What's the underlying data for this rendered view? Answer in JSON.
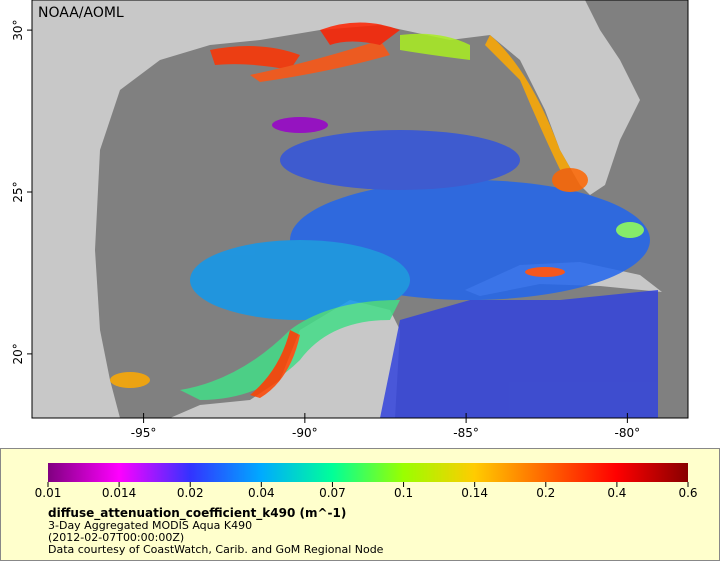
{
  "map": {
    "source": "NOAA/AOML",
    "lon_range": [
      -98.46,
      -78.12
    ],
    "lat_range": [
      30.93,
      18.02
    ],
    "lon_ticks": [
      {
        "value": -95,
        "label": "-95°"
      },
      {
        "value": -90,
        "label": "-90°"
      },
      {
        "value": -85,
        "label": "-85°"
      },
      {
        "value": -80,
        "label": "-80°"
      }
    ],
    "lat_ticks": [
      {
        "value": 30,
        "label": "30°"
      },
      {
        "value": 25,
        "label": "25°"
      },
      {
        "value": 20,
        "label": "20°"
      }
    ]
  },
  "colorbar": {
    "ticks": [
      0.01,
      0.014,
      0.02,
      0.04,
      0.07,
      0.1,
      0.14,
      0.2,
      0.4,
      0.6
    ]
  },
  "legend": {
    "variable": "diffuse_attenuation_coefficient_k490 (m^-1)",
    "description": "3-Day Aggregated MODIS Aqua K490",
    "time": "(2012-02-07T00:00:00Z)",
    "credit": "Data courtesy of CoastWatch, Carib. and GoM Regional Node"
  }
}
